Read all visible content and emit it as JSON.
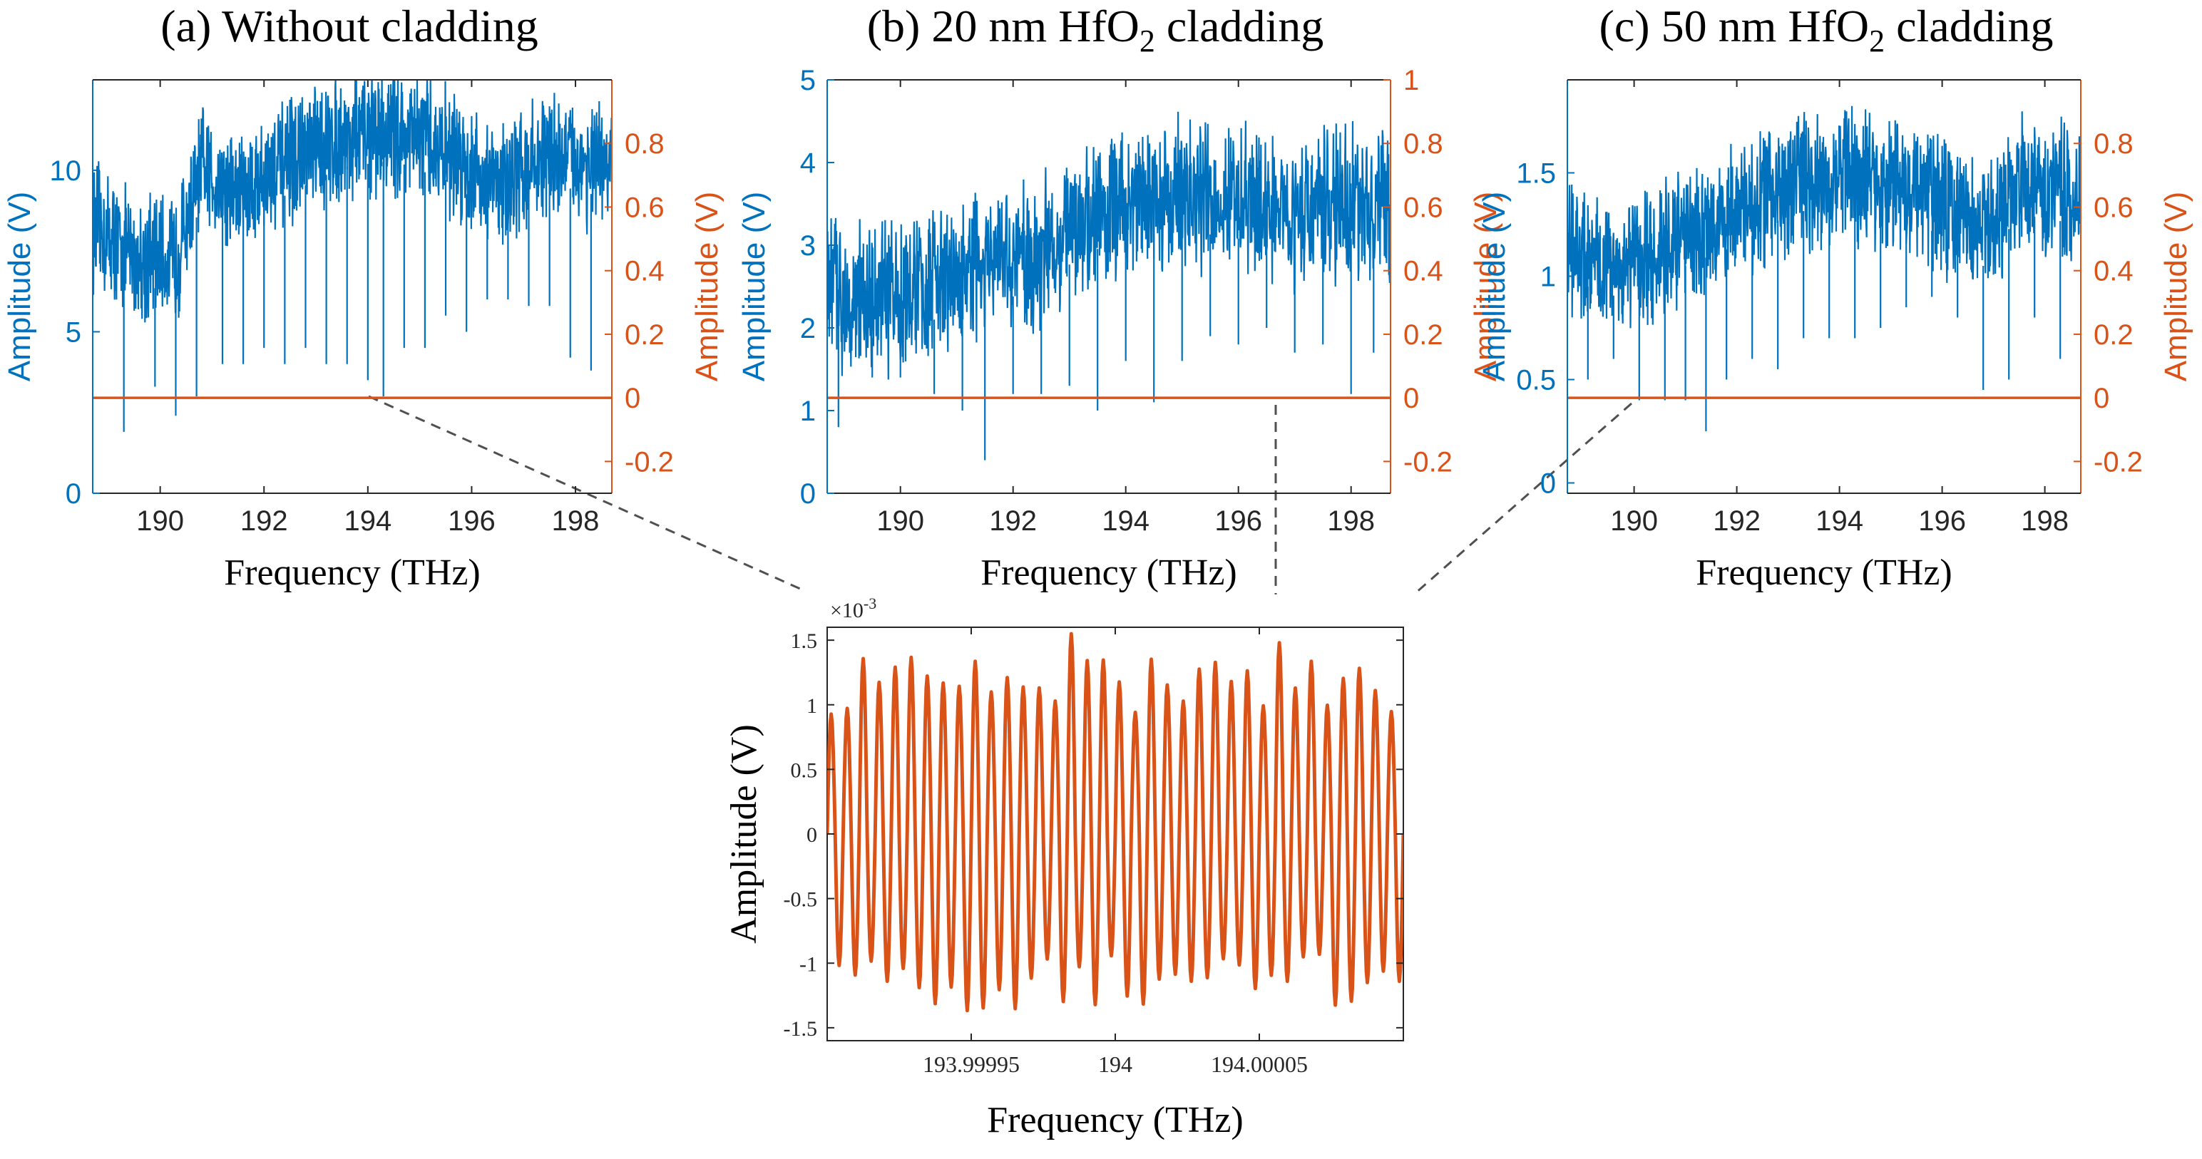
{
  "figure": {
    "panels": [
      {
        "id": "a",
        "title_prefix": "(a) Without cladding",
        "title_sub": "",
        "title_suffix": ""
      },
      {
        "id": "b",
        "title_prefix": "(b) 20 nm HfO",
        "title_sub": "2",
        "title_suffix": " cladding"
      },
      {
        "id": "c",
        "title_prefix": "(c) 50 nm HfO",
        "title_sub": "2",
        "title_suffix": " cladding"
      }
    ],
    "inset_exponent": "×10",
    "inset_exponent_power": "-3"
  },
  "colors": {
    "blue": "#0072BD",
    "orange": "#D95319",
    "axis": "#262626",
    "connector": "#505050"
  },
  "chart_data": [
    {
      "type": "line",
      "panel": "a",
      "xlabel": "Frequency (THz)",
      "ylabel_left": "Amplitude (V)",
      "ylabel_right": "Amplitude (V)",
      "xlim": [
        188.7,
        198.7
      ],
      "ylim_left": [
        0,
        12.8
      ],
      "ylim_right": [
        -0.3,
        1.0
      ],
      "xticks": [
        190,
        192,
        194,
        196,
        198
      ],
      "yticks_left": [
        0,
        5,
        10
      ],
      "yticks_right": [
        -0.2,
        0,
        0.2,
        0.4,
        0.6,
        0.8
      ],
      "ytick_labels_left": [
        "0",
        "5",
        "10"
      ],
      "ytick_labels_right": [
        "-0.2",
        "0",
        "0.2",
        "0.4",
        "0.6",
        "0.8"
      ],
      "xtick_labels": [
        "190",
        "192",
        "194",
        "196",
        "198"
      ],
      "series": [
        {
          "axis": "left",
          "color": "#0072BD",
          "envelope_x": [
            188.7,
            189.5,
            190.3,
            190.8,
            191.5,
            192.5,
            193.5,
            194.5,
            195.5,
            196.5,
            197.5,
            198.7
          ],
          "envelope_y": [
            8.3,
            7.3,
            7.2,
            10.0,
            9.3,
            10.2,
            11.0,
            11.2,
            10.6,
            9.5,
            10.5,
            10.0
          ],
          "noise_pp": 3.0,
          "dips_x": [
            189.3,
            189.9,
            190.3,
            190.7,
            191.2,
            191.6,
            192.0,
            192.4,
            192.8,
            193.2,
            193.6,
            194.0,
            194.3,
            194.7,
            195.1,
            195.5,
            195.9,
            196.3,
            196.7,
            197.1,
            197.5,
            197.9,
            198.3
          ],
          "dips_y": [
            1.9,
            3.3,
            2.4,
            3.0,
            4.0,
            4.0,
            4.5,
            4.0,
            4.5,
            4.0,
            4.0,
            3.5,
            3.0,
            4.5,
            4.5,
            5.5,
            5.0,
            6.0,
            6.0,
            5.8,
            5.8,
            4.2,
            3.8
          ]
        },
        {
          "axis": "right",
          "color": "#D95319",
          "x": [
            188.7,
            198.7
          ],
          "y": [
            0,
            0
          ]
        }
      ]
    },
    {
      "type": "line",
      "panel": "b",
      "xlabel": "Frequency (THz)",
      "ylabel_left": "Amplitude (V)",
      "ylabel_right": "Amplitude (V)",
      "xlim": [
        188.7,
        198.7
      ],
      "ylim_left": [
        0,
        5
      ],
      "ylim_right": [
        -0.3,
        1.0
      ],
      "xticks": [
        190,
        192,
        194,
        196,
        198
      ],
      "yticks_left": [
        0,
        1,
        2,
        3,
        4,
        5
      ],
      "yticks_right": [
        -0.2,
        0,
        0.2,
        0.4,
        0.6,
        0.8,
        1
      ],
      "ytick_labels_left": [
        "0",
        "1",
        "2",
        "3",
        "4",
        "5"
      ],
      "ytick_labels_right": [
        "-0.2",
        "0",
        "0.2",
        "0.4",
        "0.6",
        "0.8",
        "1"
      ],
      "xtick_labels": [
        "190",
        "192",
        "194",
        "196",
        "198"
      ],
      "series": [
        {
          "axis": "left",
          "color": "#0072BD",
          "envelope_x": [
            188.7,
            189.5,
            190.5,
            191.5,
            192.5,
            193.2,
            194.0,
            195.0,
            196.0,
            197.0,
            198.0,
            198.7
          ],
          "envelope_y": [
            2.5,
            2.3,
            2.5,
            2.7,
            2.9,
            3.3,
            3.5,
            3.6,
            3.5,
            3.4,
            3.5,
            3.4
          ],
          "noise_pp": 1.4,
          "dips_x": [
            188.9,
            189.5,
            190.0,
            190.6,
            191.1,
            191.5,
            192.0,
            192.5,
            193.0,
            193.5,
            194.0,
            194.5,
            195.0,
            195.5,
            196.0,
            196.5,
            197.0,
            197.5,
            198.0,
            198.4
          ],
          "dips_y": [
            0.8,
            1.4,
            1.4,
            1.2,
            1.0,
            0.4,
            1.2,
            1.2,
            1.3,
            1.0,
            1.6,
            1.1,
            1.6,
            1.9,
            1.8,
            2.0,
            1.7,
            1.8,
            1.2,
            1.7
          ]
        },
        {
          "axis": "right",
          "color": "#D95319",
          "x": [
            188.7,
            198.7
          ],
          "y": [
            0,
            0
          ]
        }
      ]
    },
    {
      "type": "line",
      "panel": "c",
      "xlabel": "Frequency (THz)",
      "ylabel_left": "Amplitude (V)",
      "ylabel_right": "Amplitude (V)",
      "xlim": [
        188.7,
        198.7
      ],
      "ylim_left": [
        -0.05,
        1.95
      ],
      "ylim_right": [
        -0.3,
        1.0
      ],
      "xticks": [
        190,
        192,
        194,
        196,
        198
      ],
      "yticks_left": [
        0,
        0.5,
        1,
        1.5
      ],
      "yticks_right": [
        -0.2,
        0,
        0.2,
        0.4,
        0.6,
        0.8
      ],
      "ytick_labels_left": [
        "0",
        "0.5",
        "1",
        "1.5"
      ],
      "ytick_labels_right": [
        "-0.2",
        "0",
        "0.2",
        "0.4",
        "0.6",
        "0.8"
      ],
      "xtick_labels": [
        "190",
        "192",
        "194",
        "196",
        "198"
      ],
      "series": [
        {
          "axis": "left",
          "color": "#0072BD",
          "envelope_x": [
            188.7,
            189.5,
            190.3,
            191.0,
            192.0,
            193.0,
            194.0,
            195.0,
            196.0,
            196.8,
            197.5,
            198.7
          ],
          "envelope_y": [
            1.15,
            1.05,
            1.1,
            1.2,
            1.3,
            1.45,
            1.5,
            1.45,
            1.35,
            1.2,
            1.45,
            1.4
          ],
          "noise_pp": 0.5,
          "dips_x": [
            189.1,
            189.6,
            190.1,
            190.6,
            191.0,
            191.4,
            191.8,
            192.3,
            192.8,
            193.3,
            193.8,
            194.3,
            194.8,
            195.3,
            195.8,
            196.3,
            196.8,
            197.3,
            197.8,
            198.3
          ],
          "dips_y": [
            0.5,
            0.6,
            0.4,
            0.4,
            0.4,
            0.25,
            0.5,
            0.6,
            0.55,
            0.7,
            0.7,
            0.7,
            0.75,
            0.85,
            0.9,
            0.8,
            0.45,
            0.5,
            0.8,
            0.6
          ]
        },
        {
          "axis": "right",
          "color": "#D95319",
          "x": [
            188.7,
            198.7
          ],
          "y": [
            0,
            0
          ]
        }
      ]
    },
    {
      "type": "line",
      "panel": "inset",
      "xlabel": "Frequency (THz)",
      "ylabel": "Amplitude (V)",
      "xlim": [
        193.9999,
        194.0001
      ],
      "ylim": [
        -1.6,
        1.6
      ],
      "y_scale_note": "×10^-3",
      "xticks": [
        193.99995,
        194.0,
        194.00005
      ],
      "xtick_labels": [
        "193.99995",
        "194",
        "194.00005"
      ],
      "yticks": [
        -1.5,
        -1,
        -0.5,
        0,
        0.5,
        1,
        1.5
      ],
      "ytick_labels": [
        "-1.5",
        "-1",
        "-0.5",
        "0",
        "0.5",
        "1",
        "1.5"
      ],
      "series": [
        {
          "color": "#D95319",
          "oscillation_cycles": 36,
          "amplitude_mean": 1.15,
          "peaks_max": 1.55,
          "troughs_min": -1.5
        }
      ]
    }
  ]
}
